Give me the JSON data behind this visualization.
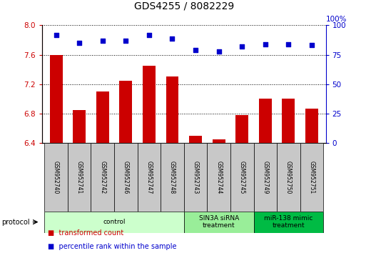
{
  "title": "GDS4255 / 8082229",
  "samples": [
    "GSM952740",
    "GSM952741",
    "GSM952742",
    "GSM952746",
    "GSM952747",
    "GSM952748",
    "GSM952743",
    "GSM952744",
    "GSM952745",
    "GSM952749",
    "GSM952750",
    "GSM952751"
  ],
  "bar_values": [
    7.6,
    6.85,
    7.1,
    7.25,
    7.45,
    7.3,
    6.5,
    6.45,
    6.78,
    7.0,
    7.0,
    6.87
  ],
  "dot_values": [
    92,
    85,
    87,
    87,
    92,
    89,
    79,
    78,
    82,
    84,
    84,
    83
  ],
  "ylim": [
    6.4,
    8.0
  ],
  "y2lim": [
    0,
    100
  ],
  "yticks": [
    6.4,
    6.8,
    7.2,
    7.6,
    8.0
  ],
  "y2ticks": [
    0,
    25,
    50,
    75,
    100
  ],
  "bar_color": "#cc0000",
  "dot_color": "#0000cc",
  "groups": [
    {
      "label": "control",
      "start": 0,
      "end": 6,
      "color": "#ccffcc"
    },
    {
      "label": "SIN3A siRNA\ntreatment",
      "start": 6,
      "end": 9,
      "color": "#99ee99"
    },
    {
      "label": "miR-138 mimic\ntreatment",
      "start": 9,
      "end": 12,
      "color": "#00bb44"
    }
  ],
  "protocol_label": "protocol",
  "legend_items": [
    {
      "color": "#cc0000",
      "label": "transformed count"
    },
    {
      "color": "#0000cc",
      "label": "percentile rank within the sample"
    }
  ],
  "title_fontsize": 10,
  "tick_fontsize": 7.5,
  "sample_fontsize": 5.5,
  "group_fontsize": 6.5,
  "legend_fontsize": 7,
  "protocol_fontsize": 7
}
